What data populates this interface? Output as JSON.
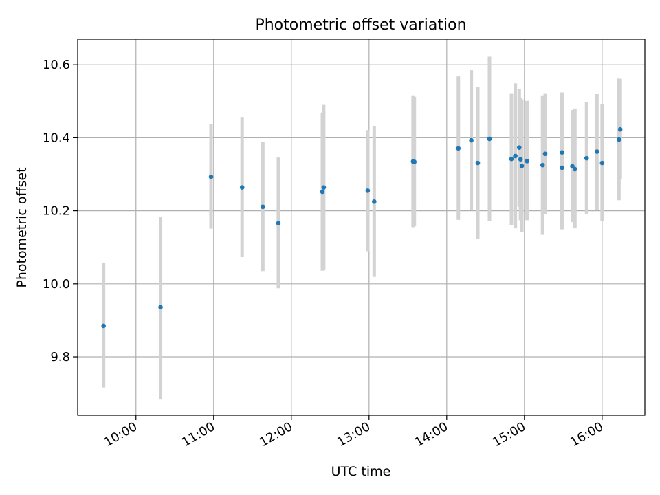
{
  "chart_data": {
    "type": "scatter",
    "title": "Photometric offset variation",
    "xlabel": "UTC time",
    "ylabel": "Photometric offset",
    "x_ticks": [
      "10:00",
      "11:00",
      "12:00",
      "13:00",
      "14:00",
      "15:00",
      "16:00"
    ],
    "y_ticks": [
      "9.8",
      "10.0",
      "10.2",
      "10.4",
      "10.6"
    ],
    "xlim": [
      "09:15",
      "16:33"
    ],
    "ylim": [
      9.64,
      10.67
    ],
    "grid": true,
    "errorbar_color": "#d3d3d3",
    "marker_color": "#1f77b4",
    "points": [
      {
        "x": "09:35",
        "y": 9.885,
        "err_low": 9.716,
        "err_high": 10.058
      },
      {
        "x": "10:19",
        "y": 9.936,
        "err_low": 9.683,
        "err_high": 10.184
      },
      {
        "x": "10:58",
        "y": 10.293,
        "err_low": 10.151,
        "err_high": 10.438
      },
      {
        "x": "11:22",
        "y": 10.264,
        "err_low": 10.073,
        "err_high": 10.457
      },
      {
        "x": "11:38",
        "y": 10.211,
        "err_low": 10.035,
        "err_high": 10.389
      },
      {
        "x": "11:50",
        "y": 10.166,
        "err_low": 9.988,
        "err_high": 10.346
      },
      {
        "x": "12:24",
        "y": 10.252,
        "err_low": 10.036,
        "err_high": 10.469
      },
      {
        "x": "12:25",
        "y": 10.264,
        "err_low": 10.037,
        "err_high": 10.49
      },
      {
        "x": "12:59",
        "y": 10.255,
        "err_low": 10.089,
        "err_high": 10.421
      },
      {
        "x": "13:04",
        "y": 10.225,
        "err_low": 10.019,
        "err_high": 10.431
      },
      {
        "x": "13:34",
        "y": 10.335,
        "err_low": 10.155,
        "err_high": 10.516
      },
      {
        "x": "13:35",
        "y": 10.334,
        "err_low": 10.158,
        "err_high": 10.512
      },
      {
        "x": "14:09",
        "y": 10.371,
        "err_low": 10.175,
        "err_high": 10.568
      },
      {
        "x": "14:19",
        "y": 10.393,
        "err_low": 10.203,
        "err_high": 10.585
      },
      {
        "x": "14:24",
        "y": 10.331,
        "err_low": 10.124,
        "err_high": 10.539
      },
      {
        "x": "14:33",
        "y": 10.397,
        "err_low": 10.173,
        "err_high": 10.622
      },
      {
        "x": "14:50",
        "y": 10.342,
        "err_low": 10.161,
        "err_high": 10.522
      },
      {
        "x": "14:53",
        "y": 10.35,
        "err_low": 10.152,
        "err_high": 10.549
      },
      {
        "x": "14:56",
        "y": 10.373,
        "err_low": 10.211,
        "err_high": 10.534
      },
      {
        "x": "14:57",
        "y": 10.341,
        "err_low": 10.174,
        "err_high": 10.509
      },
      {
        "x": "14:58",
        "y": 10.323,
        "err_low": 10.142,
        "err_high": 10.505
      },
      {
        "x": "15:02",
        "y": 10.336,
        "err_low": 10.174,
        "err_high": 10.501
      },
      {
        "x": "15:14",
        "y": 10.325,
        "err_low": 10.134,
        "err_high": 10.516
      },
      {
        "x": "15:16",
        "y": 10.356,
        "err_low": 10.191,
        "err_high": 10.522
      },
      {
        "x": "15:29",
        "y": 10.36,
        "err_low": 10.196,
        "err_high": 10.524
      },
      {
        "x": "15:29",
        "y": 10.318,
        "err_low": 10.149,
        "err_high": 10.488
      },
      {
        "x": "15:37",
        "y": 10.322,
        "err_low": 10.169,
        "err_high": 10.476
      },
      {
        "x": "15:39",
        "y": 10.314,
        "err_low": 10.152,
        "err_high": 10.48
      },
      {
        "x": "15:48",
        "y": 10.344,
        "err_low": 10.192,
        "err_high": 10.497
      },
      {
        "x": "15:56",
        "y": 10.362,
        "err_low": 10.203,
        "err_high": 10.52
      },
      {
        "x": "16:00",
        "y": 10.331,
        "err_low": 10.171,
        "err_high": 10.492
      },
      {
        "x": "16:13",
        "y": 10.395,
        "err_low": 10.229,
        "err_high": 10.562
      },
      {
        "x": "16:14",
        "y": 10.423,
        "err_low": 10.286,
        "err_high": 10.561
      }
    ]
  }
}
